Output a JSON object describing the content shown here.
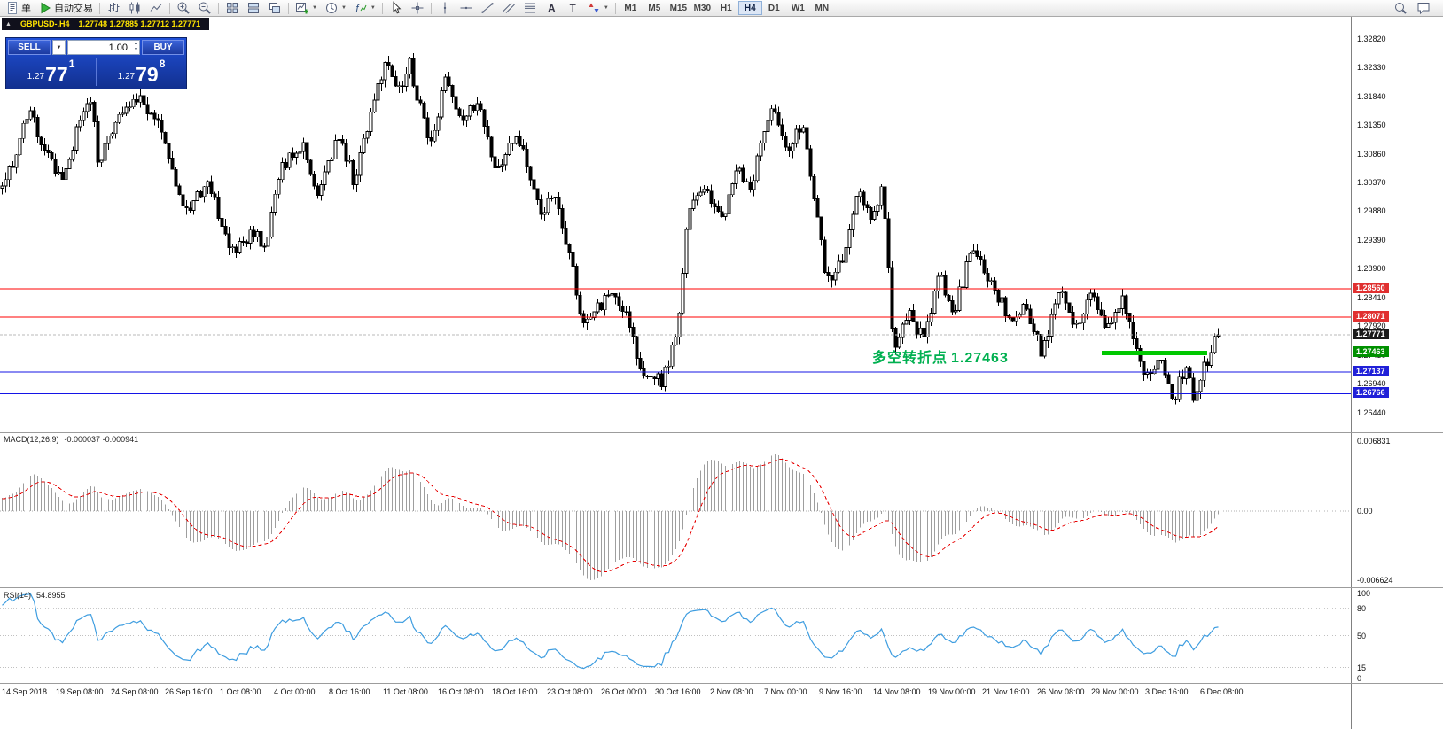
{
  "glyphs": {
    "dropdown": "▼",
    "collapse": "▲",
    "spin_up": "▲",
    "spin_down": "▼"
  },
  "toolbar": {
    "new_order_label": "单",
    "autotrading_label": "自动交易",
    "icons": [
      {
        "name": "bar-chart-icon",
        "glyph": "bar"
      },
      {
        "name": "candlestick-chart-icon",
        "glyph": "candle"
      },
      {
        "name": "line-chart-icon",
        "glyph": "line"
      },
      {
        "name": "zoom-in-icon",
        "glyph": "zoomin",
        "sep": true
      },
      {
        "name": "zoom-out-icon",
        "glyph": "zoomout"
      },
      {
        "name": "auto-arrange-icon",
        "glyph": "grid",
        "sep": true
      },
      {
        "name": "tile-windows-icon",
        "glyph": "tile"
      },
      {
        "name": "cascade-windows-icon",
        "glyph": "cascade"
      },
      {
        "name": "new-chart-icon",
        "glyph": "chartplus",
        "dropdown": true,
        "sep": true
      },
      {
        "name": "periods-icon",
        "glyph": "clock",
        "dropdown": true
      },
      {
        "name": "indicators-icon",
        "glyph": "fx",
        "dropdown": true
      },
      {
        "name": "cursor-icon",
        "glyph": "cursor",
        "sep": true
      },
      {
        "name": "crosshair-icon",
        "glyph": "cross"
      },
      {
        "name": "vertical-line-icon",
        "glyph": "vline",
        "sep": true
      },
      {
        "name": "horizontal-line-icon",
        "glyph": "hline"
      },
      {
        "name": "trendline-icon",
        "glyph": "tline"
      },
      {
        "name": "equidistant-channel-icon",
        "glyph": "channel"
      },
      {
        "name": "fibonacci-icon",
        "glyph": "fib"
      },
      {
        "name": "text-icon",
        "glyph": "textA"
      },
      {
        "name": "text-label-icon",
        "glyph": "labelT"
      },
      {
        "name": "arrows-icon",
        "glyph": "arrows",
        "dropdown": true
      }
    ],
    "timeframes": [
      "M1",
      "M5",
      "M15",
      "M30",
      "H1",
      "H4",
      "D1",
      "W1",
      "MN"
    ],
    "active_timeframe": "H4",
    "right_icons": [
      {
        "name": "search-icon",
        "glyph": "search"
      },
      {
        "name": "community-icon",
        "glyph": "chat"
      }
    ]
  },
  "chart_header": {
    "symbol_period": "GBPUSD-,H4",
    "ohlc": "1.27748 1.27885 1.27712 1.27771"
  },
  "trade_panel": {
    "sell_label": "SELL",
    "buy_label": "BUY",
    "volume": "1.00",
    "sell_price_small": "1.27",
    "sell_price_big": "77",
    "sell_price_sup": "1",
    "buy_price_small": "1.27",
    "buy_price_big": "79",
    "buy_price_sup": "8"
  },
  "chart_data": {
    "type": "candlestick",
    "symbol": "GBPUSD",
    "timeframe": "H4",
    "price_min": 1.2644,
    "price_max": 1.3282,
    "bars": 344,
    "pre_bars": 60,
    "y_ticks": [
      "1.32820",
      "1.32330",
      "1.31840",
      "1.31350",
      "1.30860",
      "1.30370",
      "1.29880",
      "1.29390",
      "1.28900",
      "1.28410",
      "1.27920",
      "1.27430",
      "1.26940",
      "1.26440"
    ],
    "x_labels": [
      "14 Sep 2018",
      "19 Sep 08:00",
      "24 Sep 08:00",
      "26 Sep 16:00",
      "1 Oct 08:00",
      "4 Oct 00:00",
      "8 Oct 16:00",
      "11 Oct 08:00",
      "16 Oct 08:00",
      "18 Oct 16:00",
      "23 Oct 08:00",
      "26 Oct 00:00",
      "30 Oct 16:00",
      "2 Nov 08:00",
      "7 Nov 00:00",
      "9 Nov 16:00",
      "14 Nov 08:00",
      "19 Nov 00:00",
      "21 Nov 16:00",
      "26 Nov 08:00",
      "29 Nov 00:00",
      "3 Dec 16:00",
      "6 Dec 08:00"
    ],
    "last_bar": {
      "open": 1.27748,
      "high": 1.27885,
      "low": 1.27712,
      "close": 1.27771
    },
    "pre_anchors": [
      [
        0,
        1.2925
      ],
      [
        0.6,
        1.2975
      ],
      [
        1,
        1.303
      ]
    ],
    "anchors": [
      [
        0.0,
        1.3035
      ],
      [
        0.01,
        1.3075
      ],
      [
        0.022,
        1.316
      ],
      [
        0.035,
        1.3095
      ],
      [
        0.05,
        1.304
      ],
      [
        0.062,
        1.313
      ],
      [
        0.073,
        1.318
      ],
      [
        0.08,
        1.306
      ],
      [
        0.093,
        1.315
      ],
      [
        0.115,
        1.3175
      ],
      [
        0.132,
        1.313
      ],
      [
        0.15,
        1.298
      ],
      [
        0.17,
        1.304
      ],
      [
        0.188,
        1.292
      ],
      [
        0.205,
        1.295
      ],
      [
        0.218,
        1.293
      ],
      [
        0.228,
        1.306
      ],
      [
        0.248,
        1.3105
      ],
      [
        0.26,
        1.301
      ],
      [
        0.277,
        1.312
      ],
      [
        0.29,
        1.3035
      ],
      [
        0.303,
        1.316
      ],
      [
        0.317,
        1.3245
      ],
      [
        0.327,
        1.319
      ],
      [
        0.335,
        1.324
      ],
      [
        0.352,
        1.3095
      ],
      [
        0.365,
        1.3215
      ],
      [
        0.378,
        1.313
      ],
      [
        0.39,
        1.318
      ],
      [
        0.405,
        1.306
      ],
      [
        0.425,
        1.3115
      ],
      [
        0.443,
        1.2985
      ],
      [
        0.455,
        1.3015
      ],
      [
        0.468,
        1.29
      ],
      [
        0.477,
        1.279
      ],
      [
        0.49,
        1.282
      ],
      [
        0.498,
        1.2845
      ],
      [
        0.515,
        1.2805
      ],
      [
        0.525,
        1.272
      ],
      [
        0.542,
        1.2695
      ],
      [
        0.555,
        1.278
      ],
      [
        0.565,
        1.3
      ],
      [
        0.578,
        1.3035
      ],
      [
        0.592,
        1.2975
      ],
      [
        0.605,
        1.3055
      ],
      [
        0.615,
        1.302
      ],
      [
        0.633,
        1.3175
      ],
      [
        0.645,
        1.3095
      ],
      [
        0.658,
        1.313
      ],
      [
        0.67,
        1.299
      ],
      [
        0.678,
        1.287
      ],
      [
        0.692,
        1.2905
      ],
      [
        0.705,
        1.3035
      ],
      [
        0.715,
        1.2965
      ],
      [
        0.724,
        1.304
      ],
      [
        0.733,
        1.276
      ],
      [
        0.746,
        1.281
      ],
      [
        0.758,
        1.277
      ],
      [
        0.77,
        1.288
      ],
      [
        0.783,
        1.282
      ],
      [
        0.798,
        1.2925
      ],
      [
        0.815,
        1.2855
      ],
      [
        0.83,
        1.28
      ],
      [
        0.843,
        1.2825
      ],
      [
        0.855,
        1.274
      ],
      [
        0.87,
        1.2855
      ],
      [
        0.883,
        1.2795
      ],
      [
        0.896,
        1.285
      ],
      [
        0.908,
        1.278
      ],
      [
        0.922,
        1.2845
      ],
      [
        0.938,
        1.27
      ],
      [
        0.952,
        1.274
      ],
      [
        0.963,
        1.266
      ],
      [
        0.972,
        1.272
      ],
      [
        0.98,
        1.2672
      ],
      [
        0.99,
        1.273
      ],
      [
        1.0,
        1.2777
      ]
    ],
    "levels": [
      {
        "price": 1.2856,
        "label": "1.28560",
        "color": "#ff0000",
        "badge": "#e03030",
        "dash": "none"
      },
      {
        "price": 1.28071,
        "label": "1.28071",
        "color": "#ff0000",
        "badge": "#e03030",
        "dash": "none"
      },
      {
        "price": 1.27771,
        "label": "1.27771",
        "color": "#b8b8b8",
        "badge": "#1a1a1a",
        "dash": "3,2"
      },
      {
        "price": 1.27463,
        "label": "1.27463",
        "color": "#008000",
        "badge": "#009000",
        "dash": "none"
      },
      {
        "price": 1.27137,
        "label": "1.27137",
        "color": "#1414e6",
        "badge": "#2020d8",
        "dash": "none"
      },
      {
        "price": 1.26766,
        "label": "1.26766",
        "color": "#1414e6",
        "badge": "#2020d8",
        "dash": "none"
      }
    ],
    "thick_segment": {
      "price": 1.27463,
      "x1": 0.8156,
      "x2": 0.8937,
      "color": "#00c800"
    },
    "annotation": {
      "text": "多空转折点",
      "value": "1.27463",
      "color": "#00b050"
    },
    "macd": {
      "name": "MACD(12,26,9)",
      "values": "-0.000037 -0.000941",
      "axis_max": "0.006831",
      "axis_zero": "0.00",
      "axis_min": "-0.006624"
    },
    "rsi": {
      "name": "RSI(14)",
      "value": "54.8955",
      "axis": [
        "100",
        "80",
        "50",
        "15",
        "0"
      ],
      "levels": [
        80,
        50,
        15
      ]
    },
    "colors": {
      "candle_up": "#ffffff",
      "candle_down": "#000000",
      "candle_outline": "#000000",
      "macd_histogram": "#9e9e9e",
      "macd_signal": "#e60000",
      "rsi_line": "#3e9de0",
      "background": "#ffffff"
    }
  }
}
